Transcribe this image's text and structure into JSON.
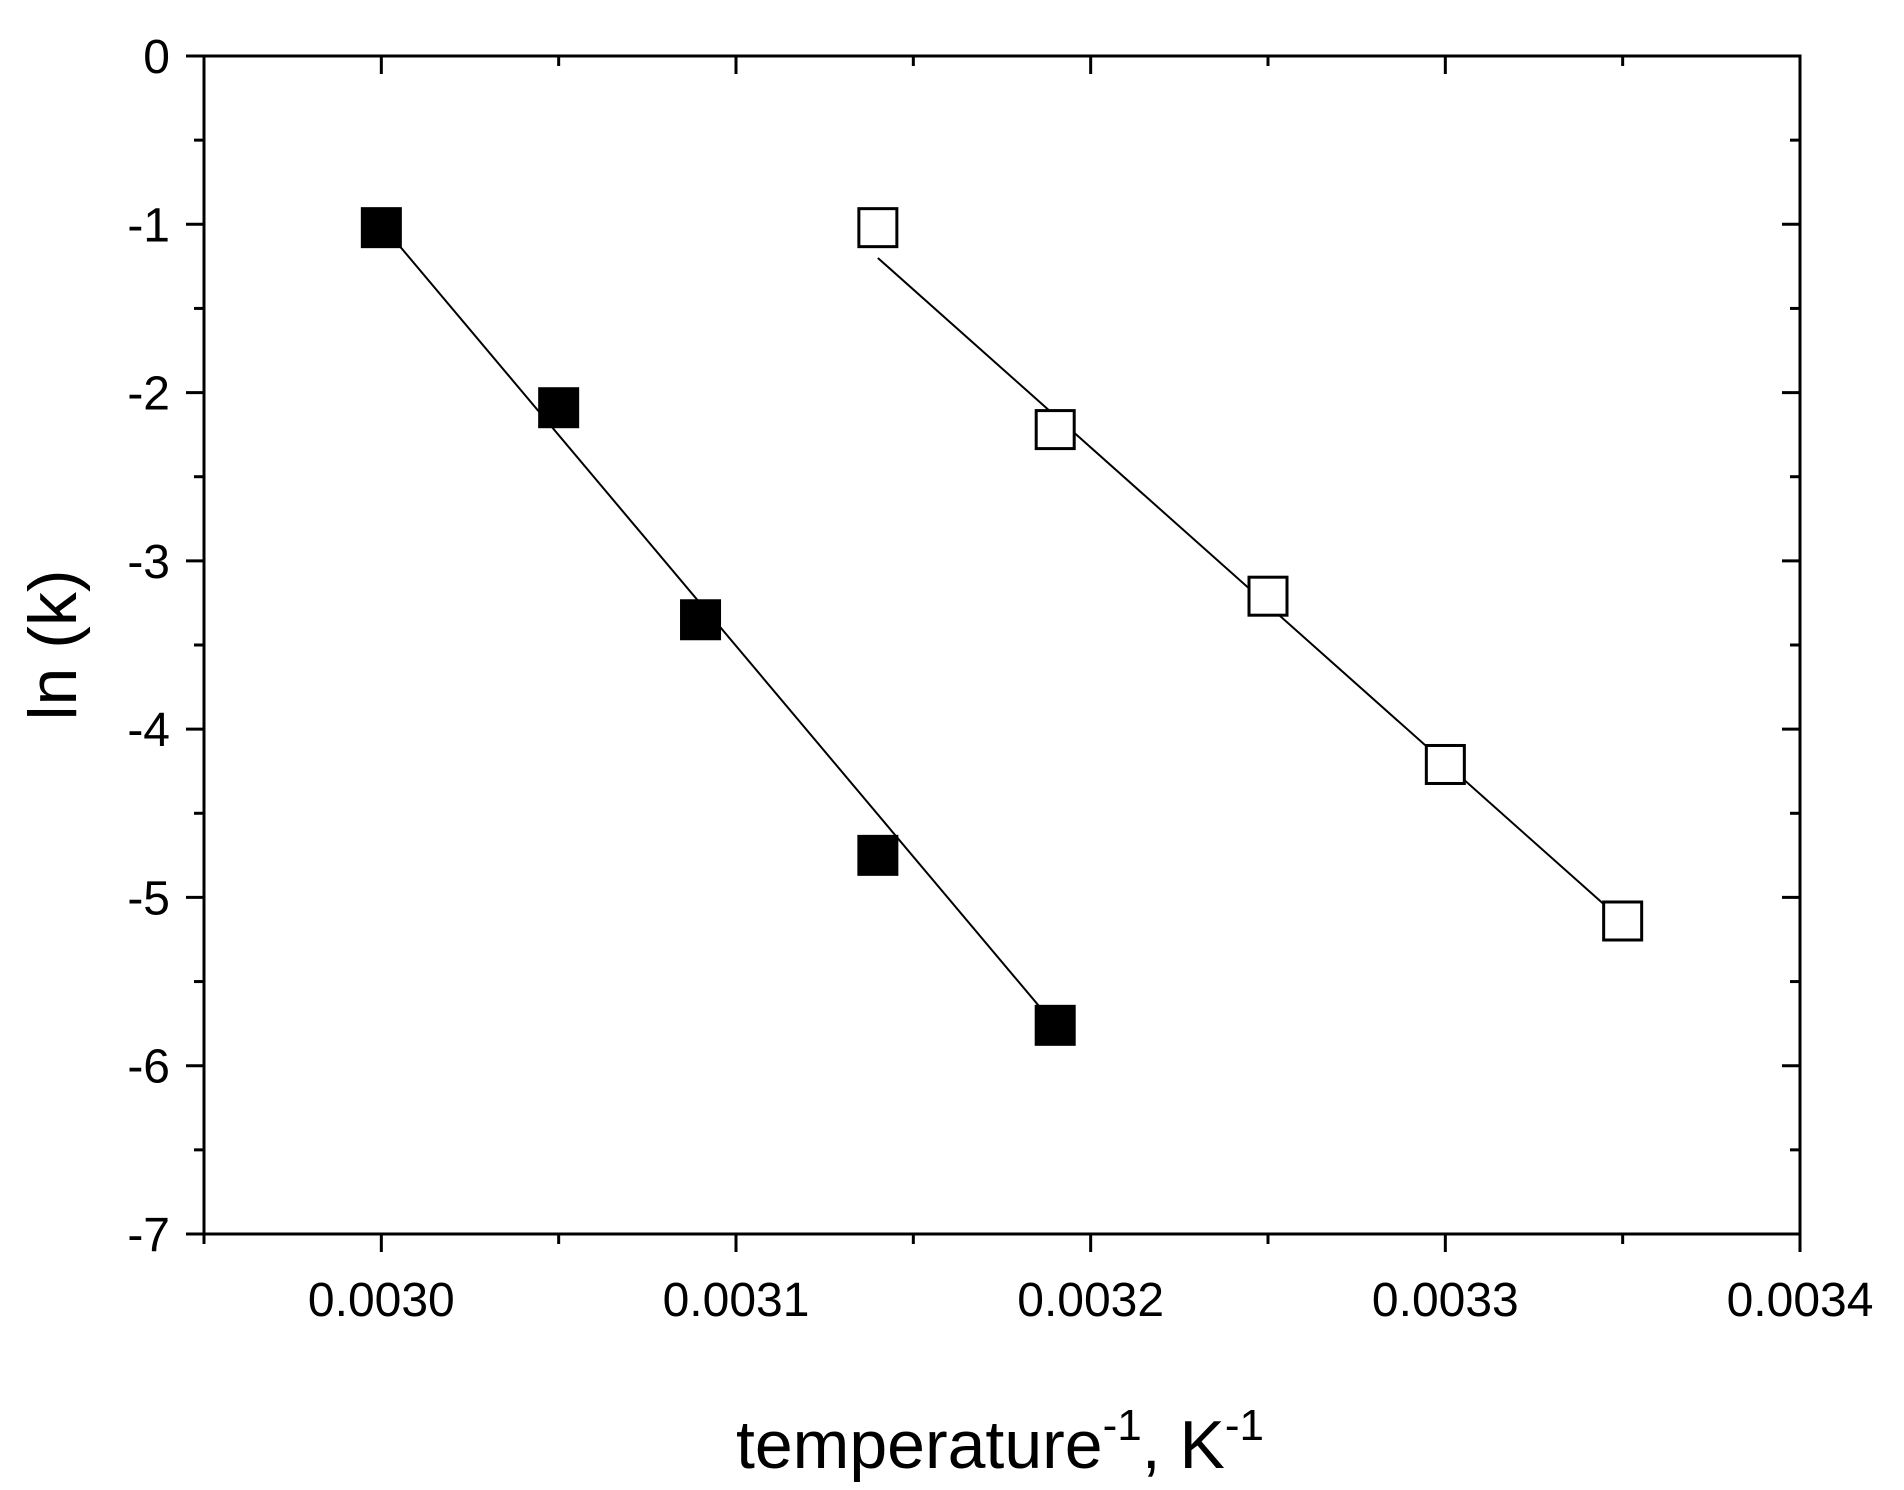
{
  "chart_data": {
    "type": "scatter",
    "title": "",
    "xlabel_parts": {
      "base": "temperature",
      "base_sup": "-1",
      "sep": ", ",
      "unit": "K",
      "unit_sup": "-1"
    },
    "ylabel": "ln (k)",
    "xlim": [
      0.00295,
      0.0034
    ],
    "ylim": [
      -7,
      0
    ],
    "x_ticks": [
      0.003,
      0.0031,
      0.0032,
      0.0033,
      0.0034
    ],
    "x_tick_labels": [
      "0.0030",
      "0.0031",
      "0.0032",
      "0.0033",
      "0.0034"
    ],
    "y_ticks": [
      0,
      -1,
      -2,
      -3,
      -4,
      -5,
      -6,
      -7
    ],
    "y_tick_labels": [
      "0",
      "-1",
      "-2",
      "-3",
      "-4",
      "-5",
      "-6",
      "-7"
    ],
    "grid": false,
    "legend": "none",
    "series": [
      {
        "marker": "filled-square",
        "color": "#000000",
        "x": [
          0.003,
          0.00305,
          0.00309,
          0.00314,
          0.00319
        ],
        "y": [
          -1.02,
          -2.09,
          -3.35,
          -4.75,
          -5.76
        ],
        "fit": {
          "x": [
            0.003,
            0.00319
          ],
          "y": [
            -1.0,
            -5.76
          ]
        }
      },
      {
        "marker": "open-square",
        "color": "#000000",
        "x": [
          0.00314,
          0.00319,
          0.00325,
          0.0033,
          0.00335
        ],
        "y": [
          -1.02,
          -2.22,
          -3.21,
          -4.21,
          -5.14
        ],
        "fit": {
          "x": [
            0.00314,
            0.00335
          ],
          "y": [
            -1.2,
            -5.14
          ]
        }
      }
    ]
  }
}
